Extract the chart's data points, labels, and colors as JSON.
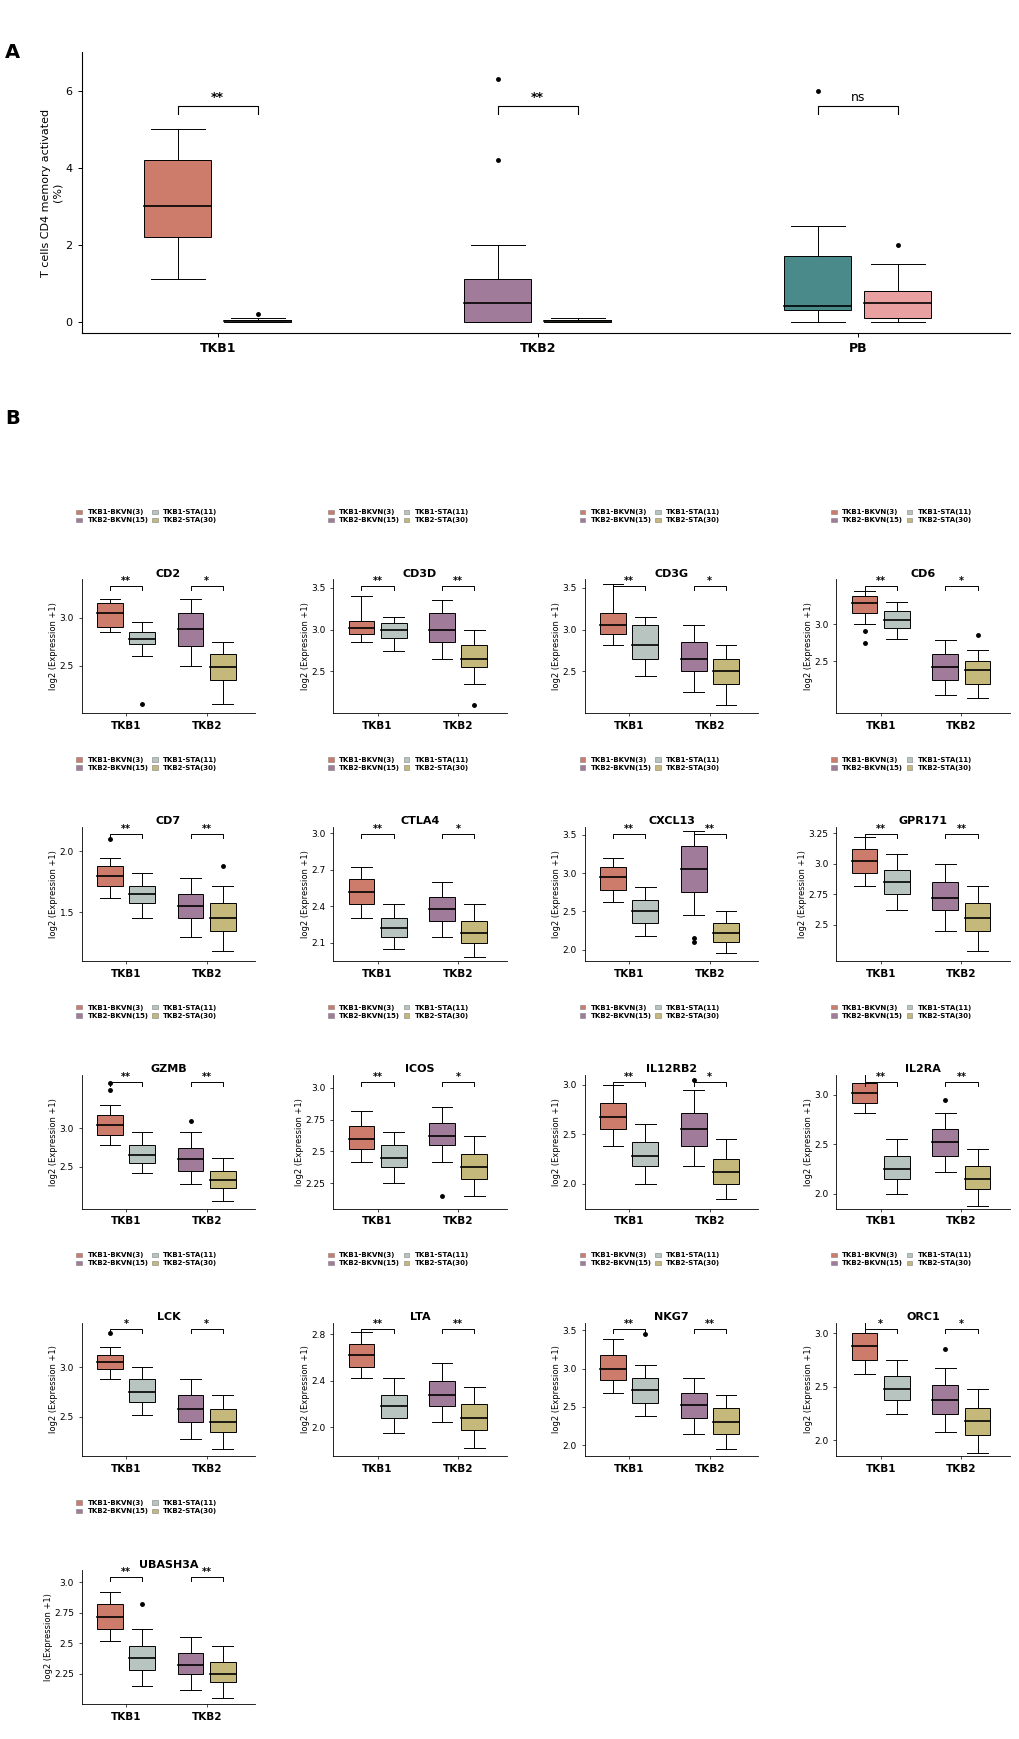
{
  "colors": {
    "TKB1_BKVN": "#CD7B6A",
    "TKB1_STA": "#B8C4BF",
    "TKB2_BKVN": "#A07B9A",
    "TKB2_STA": "#C4B87A",
    "PB_BKV": "#4A8A8A",
    "PB_STA": "#E8A0A0"
  },
  "panel_A": {
    "groups": [
      "TKB1",
      "TKB2",
      "PB"
    ],
    "TKB1_BKVN": {
      "q1": 2.2,
      "median": 3.0,
      "q3": 4.2,
      "whislo": 1.1,
      "whishi": 5.0,
      "fliers": []
    },
    "TKB1_STA": {
      "q1": 0.0,
      "median": 0.02,
      "q3": 0.05,
      "whislo": 0.0,
      "whishi": 0.1,
      "fliers": [
        0.2
      ]
    },
    "TKB2_BKVN": {
      "q1": 0.0,
      "median": 0.5,
      "q3": 1.1,
      "whislo": 0.0,
      "whishi": 2.0,
      "fliers": [
        4.2,
        6.3
      ]
    },
    "TKB2_STA": {
      "q1": 0.0,
      "median": 0.02,
      "q3": 0.05,
      "whislo": 0.0,
      "whishi": 0.1,
      "fliers": []
    },
    "PB_BKV": {
      "q1": 0.3,
      "median": 0.4,
      "q3": 1.7,
      "whislo": 0.0,
      "whishi": 2.5,
      "fliers": [
        6.0
      ]
    },
    "PB_STA": {
      "q1": 0.1,
      "median": 0.5,
      "q3": 0.8,
      "whislo": 0.0,
      "whishi": 1.5,
      "fliers": [
        2.0
      ]
    },
    "ylim": [
      -0.3,
      7.0
    ],
    "yticks": [
      0,
      2,
      4,
      6
    ],
    "ylabel": "T cells CD4 memory activated\n(%)",
    "significance": {
      "TKB1": "**",
      "TKB2": "**",
      "PB": "ns"
    }
  },
  "panel_B_genes": [
    "CD2",
    "CD3D",
    "CD3G",
    "CD6",
    "CD7",
    "CTLA4",
    "CXCL13",
    "GPR171",
    "GZMB",
    "ICOS",
    "IL12RB2",
    "IL2RA",
    "LCK",
    "LTA",
    "NKG7",
    "ORC1",
    "UBASH3A"
  ],
  "panel_B": {
    "CD2": {
      "TKB1_BKVN": {
        "q1": 2.9,
        "median": 3.05,
        "q3": 3.15,
        "whislo": 2.85,
        "whishi": 3.2,
        "fliers": []
      },
      "TKB1_STA": {
        "q1": 2.72,
        "median": 2.78,
        "q3": 2.85,
        "whislo": 2.6,
        "whishi": 2.95,
        "fliers": [
          2.1
        ]
      },
      "TKB2_BKVN": {
        "q1": 2.7,
        "median": 2.88,
        "q3": 3.05,
        "whislo": 2.5,
        "whishi": 3.2,
        "fliers": []
      },
      "TKB2_STA": {
        "q1": 2.35,
        "median": 2.48,
        "q3": 2.62,
        "whislo": 2.1,
        "whishi": 2.75,
        "fliers": []
      },
      "ylim": [
        2.0,
        3.4
      ],
      "yticks": [
        2.5,
        3.0
      ],
      "sig_TKB1": "**",
      "sig_TKB2": "*"
    },
    "CD3D": {
      "TKB1_BKVN": {
        "q1": 2.95,
        "median": 3.02,
        "q3": 3.1,
        "whislo": 2.85,
        "whishi": 3.4,
        "fliers": []
      },
      "TKB1_STA": {
        "q1": 2.9,
        "median": 3.0,
        "q3": 3.08,
        "whislo": 2.75,
        "whishi": 3.15,
        "fliers": []
      },
      "TKB2_BKVN": {
        "q1": 2.85,
        "median": 3.0,
        "q3": 3.2,
        "whislo": 2.65,
        "whishi": 3.35,
        "fliers": []
      },
      "TKB2_STA": {
        "q1": 2.55,
        "median": 2.65,
        "q3": 2.82,
        "whislo": 2.35,
        "whishi": 3.0,
        "fliers": [
          2.1
        ]
      },
      "ylim": [
        2.0,
        3.6
      ],
      "yticks": [
        2.5,
        3.0,
        3.5
      ],
      "sig_TKB1": "**",
      "sig_TKB2": "**"
    },
    "CD3G": {
      "TKB1_BKVN": {
        "q1": 2.95,
        "median": 3.05,
        "q3": 3.2,
        "whislo": 2.82,
        "whishi": 3.55,
        "fliers": []
      },
      "TKB1_STA": {
        "q1": 2.65,
        "median": 2.82,
        "q3": 3.05,
        "whislo": 2.45,
        "whishi": 3.15,
        "fliers": []
      },
      "TKB2_BKVN": {
        "q1": 2.5,
        "median": 2.65,
        "q3": 2.85,
        "whislo": 2.25,
        "whishi": 3.05,
        "fliers": []
      },
      "TKB2_STA": {
        "q1": 2.35,
        "median": 2.5,
        "q3": 2.65,
        "whislo": 2.1,
        "whishi": 2.82,
        "fliers": []
      },
      "ylim": [
        2.0,
        3.6
      ],
      "yticks": [
        2.5,
        3.0,
        3.5
      ],
      "sig_TKB1": "**",
      "sig_TKB2": "*"
    },
    "CD6": {
      "TKB1_BKVN": {
        "q1": 3.15,
        "median": 3.28,
        "q3": 3.38,
        "whislo": 3.0,
        "whishi": 3.45,
        "fliers": [
          2.9,
          2.75
        ]
      },
      "TKB1_STA": {
        "q1": 2.95,
        "median": 3.05,
        "q3": 3.18,
        "whislo": 2.8,
        "whishi": 3.3,
        "fliers": []
      },
      "TKB2_BKVN": {
        "q1": 2.25,
        "median": 2.42,
        "q3": 2.6,
        "whislo": 2.05,
        "whishi": 2.78,
        "fliers": []
      },
      "TKB2_STA": {
        "q1": 2.2,
        "median": 2.38,
        "q3": 2.5,
        "whislo": 2.0,
        "whishi": 2.65,
        "fliers": [
          2.85
        ]
      },
      "ylim": [
        1.8,
        3.6
      ],
      "yticks": [
        2.5,
        3.0
      ],
      "sig_TKB1": "**",
      "sig_TKB2": "*"
    },
    "CD7": {
      "TKB1_BKVN": {
        "q1": 1.72,
        "median": 1.8,
        "q3": 1.88,
        "whislo": 1.62,
        "whishi": 1.95,
        "fliers": [
          2.1
        ]
      },
      "TKB1_STA": {
        "q1": 1.58,
        "median": 1.65,
        "q3": 1.72,
        "whislo": 1.45,
        "whishi": 1.82,
        "fliers": []
      },
      "TKB2_BKVN": {
        "q1": 1.45,
        "median": 1.55,
        "q3": 1.65,
        "whislo": 1.3,
        "whishi": 1.78,
        "fliers": []
      },
      "TKB2_STA": {
        "q1": 1.35,
        "median": 1.45,
        "q3": 1.58,
        "whislo": 1.18,
        "whishi": 1.72,
        "fliers": [
          1.88
        ]
      },
      "ylim": [
        1.1,
        2.2
      ],
      "yticks": [
        1.5,
        2.0
      ],
      "sig_TKB1": "**",
      "sig_TKB2": "**"
    },
    "CTLA4": {
      "TKB1_BKVN": {
        "q1": 2.42,
        "median": 2.52,
        "q3": 2.62,
        "whislo": 2.3,
        "whishi": 2.72,
        "fliers": []
      },
      "TKB1_STA": {
        "q1": 2.15,
        "median": 2.22,
        "q3": 2.3,
        "whislo": 2.05,
        "whishi": 2.42,
        "fliers": []
      },
      "TKB2_BKVN": {
        "q1": 2.28,
        "median": 2.38,
        "q3": 2.48,
        "whislo": 2.15,
        "whishi": 2.6,
        "fliers": []
      },
      "TKB2_STA": {
        "q1": 2.1,
        "median": 2.18,
        "q3": 2.28,
        "whislo": 1.98,
        "whishi": 2.42,
        "fliers": []
      },
      "ylim": [
        1.95,
        3.05
      ],
      "yticks": [
        2.1,
        2.4,
        2.7,
        3.0
      ],
      "sig_TKB1": "**",
      "sig_TKB2": "*"
    },
    "CXCL13": {
      "TKB1_BKVN": {
        "q1": 2.78,
        "median": 2.95,
        "q3": 3.08,
        "whislo": 2.62,
        "whishi": 3.2,
        "fliers": []
      },
      "TKB1_STA": {
        "q1": 2.35,
        "median": 2.5,
        "q3": 2.65,
        "whislo": 2.18,
        "whishi": 2.82,
        "fliers": []
      },
      "TKB2_BKVN": {
        "q1": 2.75,
        "median": 3.05,
        "q3": 3.35,
        "whislo": 2.45,
        "whishi": 3.55,
        "fliers": [
          2.15,
          2.1
        ]
      },
      "TKB2_STA": {
        "q1": 2.1,
        "median": 2.22,
        "q3": 2.35,
        "whislo": 1.95,
        "whishi": 2.5,
        "fliers": []
      },
      "ylim": [
        1.85,
        3.6
      ],
      "yticks": [
        2.0,
        2.5,
        3.0,
        3.5
      ],
      "sig_TKB1": "**",
      "sig_TKB2": "**"
    },
    "GPR171": {
      "TKB1_BKVN": {
        "q1": 2.92,
        "median": 3.02,
        "q3": 3.12,
        "whislo": 2.82,
        "whishi": 3.22,
        "fliers": []
      },
      "TKB1_STA": {
        "q1": 2.75,
        "median": 2.85,
        "q3": 2.95,
        "whislo": 2.62,
        "whishi": 3.08,
        "fliers": []
      },
      "TKB2_BKVN": {
        "q1": 2.62,
        "median": 2.72,
        "q3": 2.85,
        "whislo": 2.45,
        "whishi": 3.0,
        "fliers": []
      },
      "TKB2_STA": {
        "q1": 2.45,
        "median": 2.55,
        "q3": 2.68,
        "whislo": 2.28,
        "whishi": 2.82,
        "fliers": []
      },
      "ylim": [
        2.2,
        3.3
      ],
      "yticks": [
        2.5,
        2.75,
        3.0,
        3.25
      ],
      "sig_TKB1": "**",
      "sig_TKB2": "**"
    },
    "GZMB": {
      "TKB1_BKVN": {
        "q1": 2.92,
        "median": 3.05,
        "q3": 3.18,
        "whislo": 2.78,
        "whishi": 3.3,
        "fliers": [
          3.5,
          3.6
        ]
      },
      "TKB1_STA": {
        "q1": 2.55,
        "median": 2.65,
        "q3": 2.78,
        "whislo": 2.42,
        "whishi": 2.95,
        "fliers": []
      },
      "TKB2_BKVN": {
        "q1": 2.45,
        "median": 2.6,
        "q3": 2.75,
        "whislo": 2.28,
        "whishi": 2.95,
        "fliers": [
          3.1
        ]
      },
      "TKB2_STA": {
        "q1": 2.22,
        "median": 2.32,
        "q3": 2.45,
        "whislo": 2.05,
        "whishi": 2.62,
        "fliers": []
      },
      "ylim": [
        1.95,
        3.7
      ],
      "yticks": [
        2.5,
        3.0
      ],
      "sig_TKB1": "**",
      "sig_TKB2": "**"
    },
    "ICOS": {
      "TKB1_BKVN": {
        "q1": 2.52,
        "median": 2.6,
        "q3": 2.7,
        "whislo": 2.42,
        "whishi": 2.82,
        "fliers": []
      },
      "TKB1_STA": {
        "q1": 2.38,
        "median": 2.45,
        "q3": 2.55,
        "whislo": 2.25,
        "whishi": 2.65,
        "fliers": []
      },
      "TKB2_BKVN": {
        "q1": 2.55,
        "median": 2.62,
        "q3": 2.72,
        "whislo": 2.42,
        "whishi": 2.85,
        "fliers": [
          2.15
        ]
      },
      "TKB2_STA": {
        "q1": 2.28,
        "median": 2.38,
        "q3": 2.48,
        "whislo": 2.15,
        "whishi": 2.62,
        "fliers": []
      },
      "ylim": [
        2.05,
        3.1
      ],
      "yticks": [
        2.25,
        2.5,
        2.75,
        3.0
      ],
      "sig_TKB1": "**",
      "sig_TKB2": "*"
    },
    "IL12RB2": {
      "TKB1_BKVN": {
        "q1": 2.55,
        "median": 2.68,
        "q3": 2.82,
        "whislo": 2.38,
        "whishi": 3.0,
        "fliers": []
      },
      "TKB1_STA": {
        "q1": 2.18,
        "median": 2.28,
        "q3": 2.42,
        "whislo": 2.0,
        "whishi": 2.6,
        "fliers": []
      },
      "TKB2_BKVN": {
        "q1": 2.38,
        "median": 2.55,
        "q3": 2.72,
        "whislo": 2.18,
        "whishi": 2.95,
        "fliers": [
          3.05
        ]
      },
      "TKB2_STA": {
        "q1": 2.0,
        "median": 2.12,
        "q3": 2.25,
        "whislo": 1.85,
        "whishi": 2.45,
        "fliers": []
      },
      "ylim": [
        1.75,
        3.1
      ],
      "yticks": [
        2.0,
        2.5,
        3.0
      ],
      "sig_TKB1": "**",
      "sig_TKB2": "*"
    },
    "IL2RA": {
      "TKB1_BKVN": {
        "q1": 2.92,
        "median": 3.02,
        "q3": 3.12,
        "whislo": 2.82,
        "whishi": 3.22,
        "fliers": []
      },
      "TKB1_STA": {
        "q1": 2.15,
        "median": 2.25,
        "q3": 2.38,
        "whislo": 2.0,
        "whishi": 2.55,
        "fliers": []
      },
      "TKB2_BKVN": {
        "q1": 2.38,
        "median": 2.52,
        "q3": 2.65,
        "whislo": 2.22,
        "whishi": 2.82,
        "fliers": [
          2.95
        ]
      },
      "TKB2_STA": {
        "q1": 2.05,
        "median": 2.15,
        "q3": 2.28,
        "whislo": 1.88,
        "whishi": 2.45,
        "fliers": []
      },
      "ylim": [
        1.85,
        3.2
      ],
      "yticks": [
        2.0,
        2.5,
        3.0
      ],
      "sig_TKB1": "**",
      "sig_TKB2": "**"
    },
    "LCK": {
      "TKB1_BKVN": {
        "q1": 2.98,
        "median": 3.05,
        "q3": 3.12,
        "whislo": 2.88,
        "whishi": 3.2,
        "fliers": [
          3.35
        ]
      },
      "TKB1_STA": {
        "q1": 2.65,
        "median": 2.75,
        "q3": 2.88,
        "whislo": 2.52,
        "whishi": 3.0,
        "fliers": []
      },
      "TKB2_BKVN": {
        "q1": 2.45,
        "median": 2.58,
        "q3": 2.72,
        "whislo": 2.28,
        "whishi": 2.88,
        "fliers": []
      },
      "TKB2_STA": {
        "q1": 2.35,
        "median": 2.45,
        "q3": 2.58,
        "whislo": 2.18,
        "whishi": 2.72,
        "fliers": []
      },
      "ylim": [
        2.1,
        3.45
      ],
      "yticks": [
        2.5,
        3.0
      ],
      "sig_TKB1": "*",
      "sig_TKB2": "*"
    },
    "LTA": {
      "TKB1_BKVN": {
        "q1": 2.52,
        "median": 2.62,
        "q3": 2.72,
        "whislo": 2.42,
        "whishi": 2.82,
        "fliers": []
      },
      "TKB1_STA": {
        "q1": 2.08,
        "median": 2.18,
        "q3": 2.28,
        "whislo": 1.95,
        "whishi": 2.42,
        "fliers": []
      },
      "TKB2_BKVN": {
        "q1": 2.18,
        "median": 2.28,
        "q3": 2.4,
        "whislo": 2.05,
        "whishi": 2.55,
        "fliers": []
      },
      "TKB2_STA": {
        "q1": 1.98,
        "median": 2.08,
        "q3": 2.2,
        "whislo": 1.82,
        "whishi": 2.35,
        "fliers": []
      },
      "ylim": [
        1.75,
        2.9
      ],
      "yticks": [
        2.0,
        2.4,
        2.8
      ],
      "sig_TKB1": "**",
      "sig_TKB2": "**"
    },
    "NKG7": {
      "TKB1_BKVN": {
        "q1": 2.85,
        "median": 3.0,
        "q3": 3.18,
        "whislo": 2.68,
        "whishi": 3.38,
        "fliers": []
      },
      "TKB1_STA": {
        "q1": 2.55,
        "median": 2.72,
        "q3": 2.88,
        "whislo": 2.38,
        "whishi": 3.05,
        "fliers": [
          3.45
        ]
      },
      "TKB2_BKVN": {
        "q1": 2.35,
        "median": 2.52,
        "q3": 2.68,
        "whislo": 2.15,
        "whishi": 2.88,
        "fliers": []
      },
      "TKB2_STA": {
        "q1": 2.15,
        "median": 2.3,
        "q3": 2.48,
        "whislo": 1.95,
        "whishi": 2.65,
        "fliers": []
      },
      "ylim": [
        1.85,
        3.6
      ],
      "yticks": [
        2.0,
        2.5,
        3.0,
        3.5
      ],
      "sig_TKB1": "**",
      "sig_TKB2": "**"
    },
    "ORC1": {
      "TKB1_BKVN": {
        "q1": 2.75,
        "median": 2.88,
        "q3": 3.0,
        "whislo": 2.62,
        "whishi": 3.12,
        "fliers": []
      },
      "TKB1_STA": {
        "q1": 2.38,
        "median": 2.48,
        "q3": 2.6,
        "whislo": 2.25,
        "whishi": 2.75,
        "fliers": []
      },
      "TKB2_BKVN": {
        "q1": 2.25,
        "median": 2.38,
        "q3": 2.52,
        "whislo": 2.08,
        "whishi": 2.68,
        "fliers": [
          2.85
        ]
      },
      "TKB2_STA": {
        "q1": 2.05,
        "median": 2.18,
        "q3": 2.3,
        "whislo": 1.88,
        "whishi": 2.48,
        "fliers": []
      },
      "ylim": [
        1.85,
        3.1
      ],
      "yticks": [
        2.0,
        2.5,
        3.0
      ],
      "sig_TKB1": "*",
      "sig_TKB2": "*"
    },
    "UBASH3A": {
      "TKB1_BKVN": {
        "q1": 2.62,
        "median": 2.72,
        "q3": 2.82,
        "whislo": 2.52,
        "whishi": 2.92,
        "fliers": []
      },
      "TKB1_STA": {
        "q1": 2.28,
        "median": 2.38,
        "q3": 2.48,
        "whislo": 2.15,
        "whishi": 2.62,
        "fliers": [
          2.82
        ]
      },
      "TKB2_BKVN": {
        "q1": 2.25,
        "median": 2.32,
        "q3": 2.42,
        "whislo": 2.12,
        "whishi": 2.55,
        "fliers": []
      },
      "TKB2_STA": {
        "q1": 2.18,
        "median": 2.25,
        "q3": 2.35,
        "whislo": 2.05,
        "whishi": 2.48,
        "fliers": []
      },
      "ylim": [
        2.0,
        3.1
      ],
      "yticks": [
        2.25,
        2.5,
        2.75,
        3.0
      ],
      "sig_TKB1": "**",
      "sig_TKB2": "**"
    }
  }
}
